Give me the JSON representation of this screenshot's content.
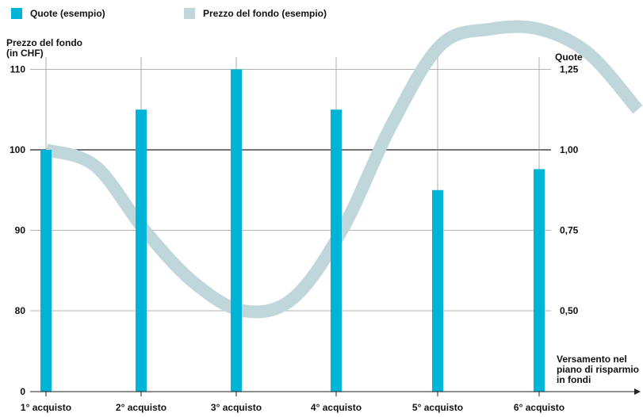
{
  "chart_data": {
    "type": "bar",
    "legend": [
      {
        "label": "Quote (esempio)",
        "color": "#00b4d8"
      },
      {
        "label": "Prezzo del fondo (esempio)",
        "color": "#bfd7da"
      }
    ],
    "ylabel_left_lines": [
      "Prezzo del fondo",
      "(in CHF)"
    ],
    "ylabel_right": "Quote",
    "xlabel_lines": [
      "Versamento nel",
      "piano di risparmio",
      "in fondi"
    ],
    "categories": [
      "1° acquisto",
      "2° acquisto",
      "3° acquisto",
      "4° acquisto",
      "5° acquisto",
      "6° acquisto"
    ],
    "left_axis": {
      "ticks": [
        0,
        80,
        90,
        100,
        110
      ],
      "tick_labels": [
        "0",
        "80",
        "90",
        "100",
        "110"
      ]
    },
    "right_axis": {
      "ticks": [
        0.5,
        0.75,
        1.0,
        1.25
      ],
      "tick_labels": [
        "0,50",
        "0,75",
        "1,00",
        "1,25"
      ]
    },
    "series": [
      {
        "name": "Quote (esempio)",
        "kind": "bar",
        "axis": "right",
        "color": "#00b4d8",
        "values": [
          1.0,
          1.125,
          1.25,
          1.125,
          0.875,
          0.94
        ]
      },
      {
        "name": "Prezzo del fondo (esempio)",
        "kind": "smooth-line",
        "axis": "left",
        "color": "#bfd7da",
        "x": [
          0,
          0.5,
          1,
          1.5,
          2,
          2.5,
          3,
          3.5,
          4,
          4.5,
          5,
          5.5,
          6
        ],
        "values": [
          100,
          98,
          90,
          83.5,
          80,
          81.5,
          90,
          103,
          113,
          115,
          115,
          112,
          105
        ]
      }
    ],
    "grid": true
  }
}
